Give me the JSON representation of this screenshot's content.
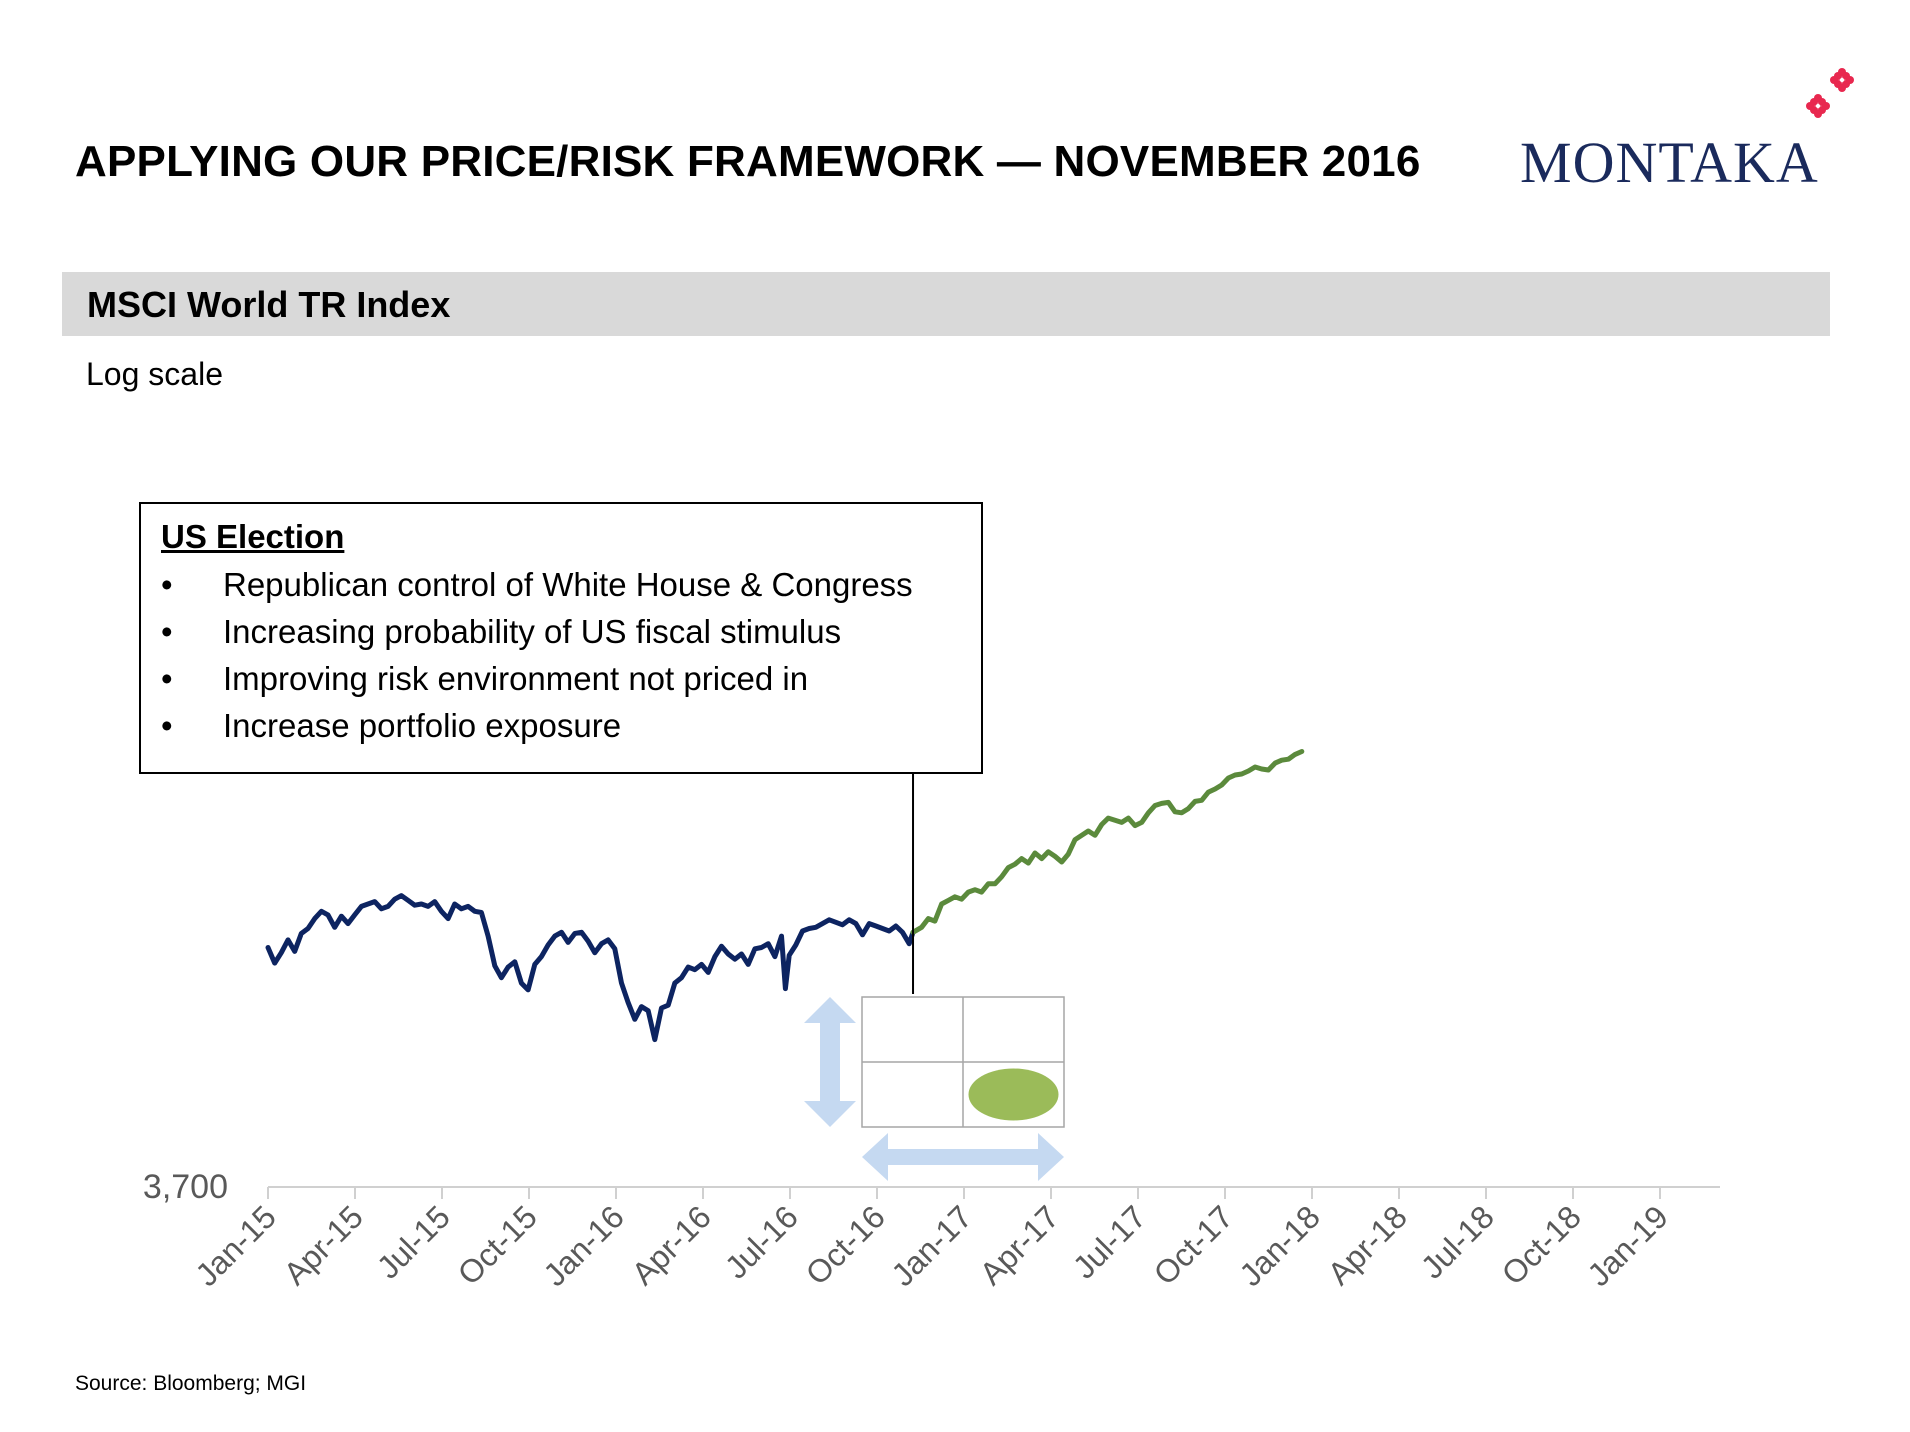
{
  "title": "APPLYING OUR PRICE/RISK FRAMEWORK — NOVEMBER 2016",
  "logo": {
    "text": "MONTAKA",
    "text_color": "#1a2a5c",
    "mark_color": "#e8284f",
    "mark_icon": "flower-mark-icon"
  },
  "section": {
    "title": "MSCI World TR Index",
    "bar_color": "#d9d9d9"
  },
  "subtitle": "Log scale",
  "callout": {
    "title": "US Election",
    "bullet": "•",
    "items": [
      "Republican control of White House & Congress",
      "Increasing probability of US fiscal stimulus",
      "Improving risk environment not priced in",
      "Increase portfolio exposure"
    ]
  },
  "framework_matrix": {
    "rows": 2,
    "cols": 2,
    "highlight_cell": "bottom-right",
    "highlight_color": "#9bbb59",
    "vertical_arrow": "up-down-arrow-icon",
    "horizontal_arrow": "left-right-arrow-icon",
    "arrow_color": "#c5d9f1"
  },
  "source": "Source: Bloomberg; MGI",
  "chart_data": {
    "type": "line",
    "title": "MSCI World TR Index",
    "xlabel": "",
    "ylabel": "",
    "log_scale": true,
    "grid": false,
    "y_tick_labels": [
      "3,700"
    ],
    "y_min_label": 3700,
    "x_tick_labels": [
      "Jan-15",
      "Apr-15",
      "Jul-15",
      "Oct-15",
      "Jan-16",
      "Apr-16",
      "Jul-16",
      "Oct-16",
      "Jan-17",
      "Apr-17",
      "Jul-17",
      "Oct-17",
      "Jan-18",
      "Apr-18",
      "Jul-18",
      "Oct-18",
      "Jan-19"
    ],
    "xlim": [
      "2015-01-01",
      "2019-01-01"
    ],
    "ylim": [
      3700,
      8300
    ],
    "event": {
      "date": "2016-11-08",
      "label": "US Election"
    },
    "series": [
      {
        "color": "#0d2461",
        "points": [
          [
            "2015-01-01",
            5270
          ],
          [
            "2015-01-08",
            5150
          ],
          [
            "2015-01-15",
            5230
          ],
          [
            "2015-01-22",
            5330
          ],
          [
            "2015-01-29",
            5240
          ],
          [
            "2015-02-05",
            5380
          ],
          [
            "2015-02-12",
            5420
          ],
          [
            "2015-02-19",
            5500
          ],
          [
            "2015-02-26",
            5560
          ],
          [
            "2015-03-05",
            5530
          ],
          [
            "2015-03-12",
            5430
          ],
          [
            "2015-03-19",
            5520
          ],
          [
            "2015-03-26",
            5460
          ],
          [
            "2015-04-02",
            5530
          ],
          [
            "2015-04-09",
            5600
          ],
          [
            "2015-04-16",
            5620
          ],
          [
            "2015-04-23",
            5640
          ],
          [
            "2015-04-30",
            5580
          ],
          [
            "2015-05-07",
            5600
          ],
          [
            "2015-05-14",
            5660
          ],
          [
            "2015-05-21",
            5690
          ],
          [
            "2015-05-28",
            5650
          ],
          [
            "2015-06-04",
            5610
          ],
          [
            "2015-06-11",
            5620
          ],
          [
            "2015-06-18",
            5600
          ],
          [
            "2015-06-25",
            5640
          ],
          [
            "2015-07-02",
            5560
          ],
          [
            "2015-07-09",
            5500
          ],
          [
            "2015-07-16",
            5620
          ],
          [
            "2015-07-23",
            5580
          ],
          [
            "2015-07-30",
            5600
          ],
          [
            "2015-08-06",
            5560
          ],
          [
            "2015-08-13",
            5550
          ],
          [
            "2015-08-20",
            5360
          ],
          [
            "2015-08-27",
            5130
          ],
          [
            "2015-09-03",
            5040
          ],
          [
            "2015-09-10",
            5120
          ],
          [
            "2015-09-17",
            5160
          ],
          [
            "2015-09-24",
            5000
          ],
          [
            "2015-10-01",
            4950
          ],
          [
            "2015-10-08",
            5140
          ],
          [
            "2015-10-15",
            5200
          ],
          [
            "2015-10-22",
            5290
          ],
          [
            "2015-10-29",
            5360
          ],
          [
            "2015-11-05",
            5390
          ],
          [
            "2015-11-12",
            5310
          ],
          [
            "2015-11-19",
            5380
          ],
          [
            "2015-11-26",
            5390
          ],
          [
            "2015-12-03",
            5320
          ],
          [
            "2015-12-10",
            5230
          ],
          [
            "2015-12-17",
            5300
          ],
          [
            "2015-12-24",
            5330
          ],
          [
            "2015-12-31",
            5260
          ],
          [
            "2016-01-07",
            5000
          ],
          [
            "2016-01-14",
            4860
          ],
          [
            "2016-01-21",
            4740
          ],
          [
            "2016-01-28",
            4830
          ],
          [
            "2016-02-04",
            4800
          ],
          [
            "2016-02-11",
            4600
          ],
          [
            "2016-02-18",
            4820
          ],
          [
            "2016-02-25",
            4840
          ],
          [
            "2016-03-03",
            5000
          ],
          [
            "2016-03-10",
            5040
          ],
          [
            "2016-03-17",
            5120
          ],
          [
            "2016-03-24",
            5100
          ],
          [
            "2016-03-31",
            5140
          ],
          [
            "2016-04-07",
            5080
          ],
          [
            "2016-04-14",
            5200
          ],
          [
            "2016-04-21",
            5280
          ],
          [
            "2016-04-28",
            5220
          ],
          [
            "2016-05-05",
            5180
          ],
          [
            "2016-05-12",
            5220
          ],
          [
            "2016-05-19",
            5140
          ],
          [
            "2016-05-26",
            5260
          ],
          [
            "2016-06-02",
            5270
          ],
          [
            "2016-06-09",
            5300
          ],
          [
            "2016-06-16",
            5200
          ],
          [
            "2016-06-23",
            5360
          ],
          [
            "2016-06-27",
            4960
          ],
          [
            "2016-07-01",
            5210
          ],
          [
            "2016-07-08",
            5290
          ],
          [
            "2016-07-15",
            5400
          ],
          [
            "2016-07-22",
            5420
          ],
          [
            "2016-07-29",
            5430
          ],
          [
            "2016-08-05",
            5460
          ],
          [
            "2016-08-12",
            5490
          ],
          [
            "2016-08-19",
            5470
          ],
          [
            "2016-08-26",
            5450
          ],
          [
            "2016-09-02",
            5490
          ],
          [
            "2016-09-09",
            5460
          ],
          [
            "2016-09-16",
            5370
          ],
          [
            "2016-09-23",
            5460
          ],
          [
            "2016-09-30",
            5440
          ],
          [
            "2016-10-07",
            5420
          ],
          [
            "2016-10-14",
            5400
          ],
          [
            "2016-10-21",
            5440
          ],
          [
            "2016-10-28",
            5390
          ],
          [
            "2016-11-04",
            5300
          ],
          [
            "2016-11-08",
            5390
          ]
        ]
      },
      {
        "color": "#5b8a3c",
        "points": [
          [
            "2016-11-08",
            5390
          ],
          [
            "2016-11-17",
            5430
          ],
          [
            "2016-11-24",
            5500
          ],
          [
            "2016-12-01",
            5480
          ],
          [
            "2016-12-08",
            5620
          ],
          [
            "2016-12-15",
            5650
          ],
          [
            "2016-12-22",
            5680
          ],
          [
            "2016-12-29",
            5660
          ],
          [
            "2017-01-05",
            5720
          ],
          [
            "2017-01-12",
            5740
          ],
          [
            "2017-01-19",
            5720
          ],
          [
            "2017-01-26",
            5790
          ],
          [
            "2017-02-02",
            5790
          ],
          [
            "2017-02-09",
            5850
          ],
          [
            "2017-02-16",
            5930
          ],
          [
            "2017-02-23",
            5960
          ],
          [
            "2017-03-02",
            6010
          ],
          [
            "2017-03-09",
            5970
          ],
          [
            "2017-03-16",
            6060
          ],
          [
            "2017-03-23",
            6010
          ],
          [
            "2017-03-30",
            6070
          ],
          [
            "2017-04-06",
            6030
          ],
          [
            "2017-04-13",
            5980
          ],
          [
            "2017-04-20",
            6050
          ],
          [
            "2017-04-27",
            6180
          ],
          [
            "2017-05-04",
            6220
          ],
          [
            "2017-05-11",
            6260
          ],
          [
            "2017-05-18",
            6220
          ],
          [
            "2017-05-25",
            6320
          ],
          [
            "2017-06-01",
            6380
          ],
          [
            "2017-06-08",
            6360
          ],
          [
            "2017-06-15",
            6340
          ],
          [
            "2017-06-22",
            6380
          ],
          [
            "2017-06-29",
            6310
          ],
          [
            "2017-07-06",
            6340
          ],
          [
            "2017-07-13",
            6430
          ],
          [
            "2017-07-20",
            6500
          ],
          [
            "2017-07-27",
            6520
          ],
          [
            "2017-08-03",
            6530
          ],
          [
            "2017-08-10",
            6440
          ],
          [
            "2017-08-17",
            6430
          ],
          [
            "2017-08-24",
            6470
          ],
          [
            "2017-08-31",
            6540
          ],
          [
            "2017-09-07",
            6550
          ],
          [
            "2017-09-14",
            6630
          ],
          [
            "2017-09-21",
            6660
          ],
          [
            "2017-09-28",
            6700
          ],
          [
            "2017-10-05",
            6770
          ],
          [
            "2017-10-12",
            6800
          ],
          [
            "2017-10-19",
            6810
          ],
          [
            "2017-10-26",
            6840
          ],
          [
            "2017-11-02",
            6880
          ],
          [
            "2017-11-09",
            6860
          ],
          [
            "2017-11-16",
            6850
          ],
          [
            "2017-11-23",
            6920
          ],
          [
            "2017-11-30",
            6950
          ],
          [
            "2017-12-07",
            6960
          ],
          [
            "2017-12-14",
            7010
          ],
          [
            "2017-12-21",
            7040
          ]
        ]
      }
    ]
  }
}
